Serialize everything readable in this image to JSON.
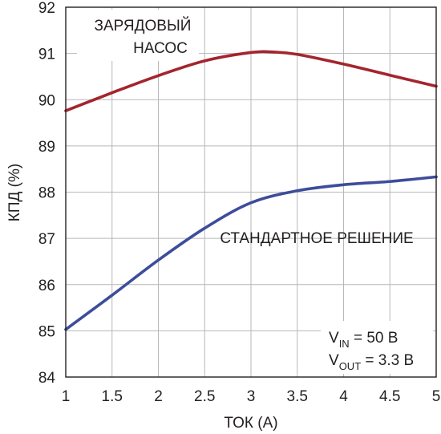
{
  "chart_data": {
    "type": "line",
    "xlabel": "ТОК (А)",
    "ylabel": "КПД (%)",
    "xlim": [
      1,
      5
    ],
    "ylim": [
      84,
      92
    ],
    "x_ticks": [
      "1",
      "1.5",
      "2",
      "2.5",
      "3",
      "3.5",
      "4",
      "4.5",
      "5"
    ],
    "y_ticks": [
      "84",
      "85",
      "86",
      "87",
      "88",
      "89",
      "90",
      "91",
      "92"
    ],
    "grid": true,
    "series": [
      {
        "name": "ЗАРЯДОВЫЙ НАСОС",
        "label_lines": [
          "ЗАРЯДОВЫЙ",
          "НАСОС"
        ],
        "color": "#a3252e",
        "x": [
          1,
          1.5,
          2,
          2.5,
          3,
          3.25,
          3.5,
          4,
          4.5,
          5
        ],
        "y": [
          89.76,
          90.15,
          90.52,
          90.84,
          91.02,
          91.03,
          90.98,
          90.77,
          90.53,
          90.29
        ]
      },
      {
        "name": "СТАНДАРТНОЕ РЕШЕНИЕ",
        "label_lines": [
          "СТАНДАРТНОЕ РЕШЕНИЕ"
        ],
        "color": "#3d4d9a",
        "x": [
          1,
          1.5,
          2,
          2.5,
          3,
          3.5,
          4,
          4.5,
          5
        ],
        "y": [
          85.03,
          85.77,
          86.53,
          87.22,
          87.77,
          88.03,
          88.16,
          88.23,
          88.33
        ]
      }
    ],
    "conditions": {
      "vin": {
        "main": "V",
        "sub": "IN",
        "rest": " = 50 В"
      },
      "vout": {
        "main": "V",
        "sub": "OUT",
        "rest": " = 3.3 В"
      }
    }
  }
}
